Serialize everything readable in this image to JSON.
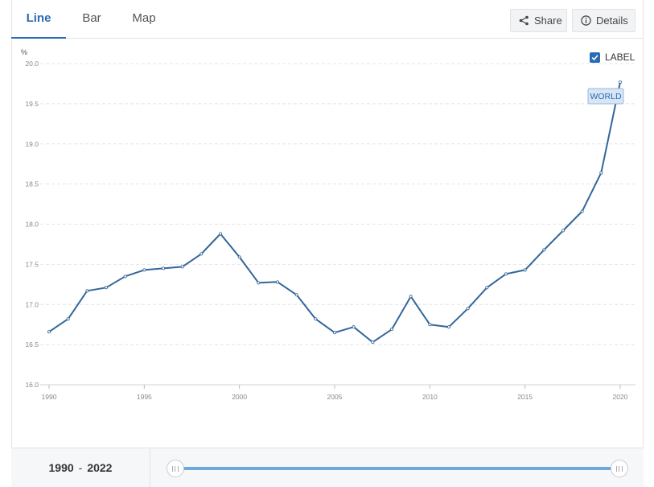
{
  "tabs": [
    {
      "label": "Line",
      "active": true
    },
    {
      "label": "Bar",
      "active": false
    },
    {
      "label": "Map",
      "active": false
    }
  ],
  "toolbar": {
    "share_label": "Share",
    "details_label": "Details"
  },
  "legend_toggle": {
    "label": "LABEL",
    "checked": true
  },
  "range": {
    "start": "1990",
    "separator": "-",
    "end": "2022"
  },
  "colors": {
    "accent": "#2a6cb3",
    "line": "#336699",
    "slider": "#6fa8dc"
  },
  "chart_data": {
    "type": "line",
    "ylabel": "%",
    "ylim": [
      16.0,
      20.0
    ],
    "yticks": [
      "16.0",
      "16.5",
      "17.0",
      "17.5",
      "18.0",
      "18.5",
      "19.0",
      "19.5",
      "20.0"
    ],
    "xlim": [
      1990,
      2020
    ],
    "xticks": [
      "1990",
      "1995",
      "2000",
      "2005",
      "2010",
      "2015",
      "2020"
    ],
    "grid": true,
    "series": [
      {
        "name": "WORLD",
        "x": [
          1990,
          1991,
          1992,
          1993,
          1994,
          1995,
          1996,
          1997,
          1998,
          1999,
          2000,
          2001,
          2002,
          2003,
          2004,
          2005,
          2006,
          2007,
          2008,
          2009,
          2010,
          2011,
          2012,
          2013,
          2014,
          2015,
          2016,
          2017,
          2018,
          2019,
          2020
        ],
        "values": [
          16.66,
          16.82,
          17.17,
          17.21,
          17.35,
          17.43,
          17.45,
          17.47,
          17.63,
          17.88,
          17.59,
          17.27,
          17.28,
          17.12,
          16.82,
          16.65,
          16.72,
          16.53,
          16.69,
          17.1,
          16.75,
          16.72,
          16.95,
          17.21,
          17.38,
          17.43,
          17.68,
          17.92,
          18.16,
          18.64,
          19.77
        ]
      }
    ]
  }
}
